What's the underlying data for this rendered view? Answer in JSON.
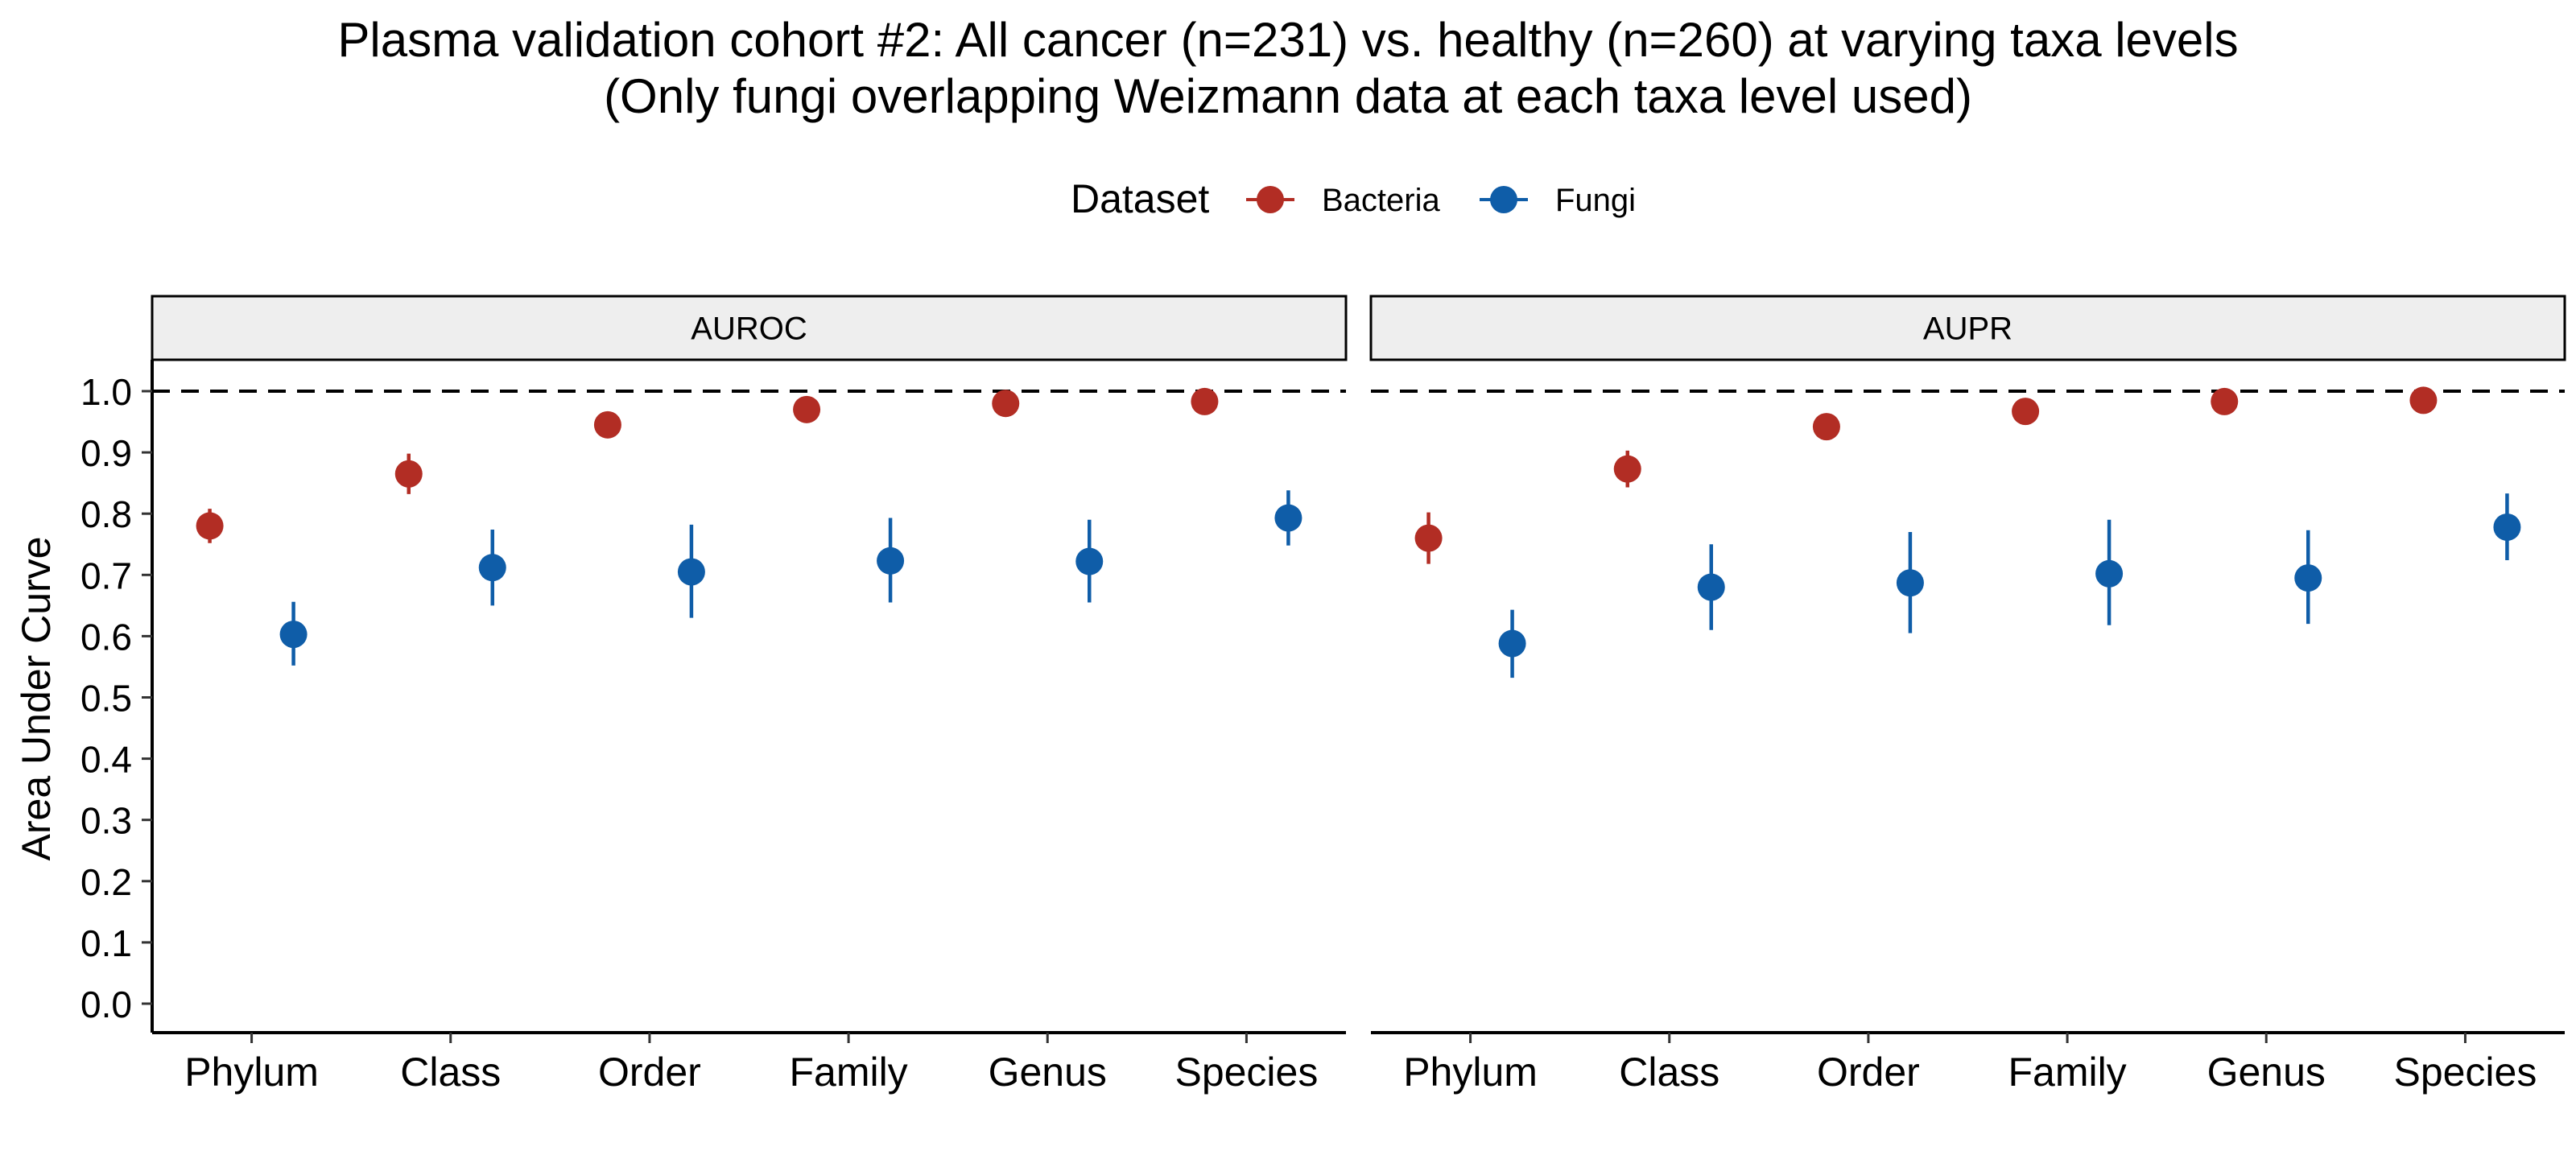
{
  "chart_data": {
    "type": "scatter",
    "title": "Plasma validation cohort #2: All cancer (n=231) vs. healthy (n=260) at varying taxa levels",
    "subtitle": "(Only fungi overlapping Weizmann data at each taxa level used)",
    "ylabel": "Area Under Curve",
    "xlabel": "",
    "legend": {
      "title": "Dataset",
      "position": "top",
      "items": [
        {
          "name": "Bacteria",
          "color": "#B22D24"
        },
        {
          "name": "Fungi",
          "color": "#0F5DA8"
        }
      ]
    },
    "ylim": [
      0,
      1
    ],
    "yticks": [
      "0.0",
      "0.1",
      "0.2",
      "0.3",
      "0.4",
      "0.5",
      "0.6",
      "0.7",
      "0.8",
      "0.9",
      "1.0"
    ],
    "reference_line": 1.0,
    "grid": false,
    "categories": [
      "Phylum",
      "Class",
      "Order",
      "Family",
      "Genus",
      "Species"
    ],
    "panels": [
      {
        "label": "AUROC",
        "series": [
          {
            "name": "Bacteria",
            "values": [
              0.78,
              0.865,
              0.945,
              0.97,
              0.98,
              0.983
            ],
            "lower": [
              0.752,
              0.832,
              0.932,
              0.958,
              0.97,
              0.973
            ],
            "upper": [
              0.808,
              0.898,
              0.958,
              0.982,
              0.99,
              0.993
            ]
          },
          {
            "name": "Fungi",
            "values": [
              0.603,
              0.712,
              0.705,
              0.723,
              0.722,
              0.793
            ],
            "lower": [
              0.552,
              0.65,
              0.63,
              0.655,
              0.655,
              0.748
            ],
            "upper": [
              0.656,
              0.774,
              0.782,
              0.793,
              0.79,
              0.838
            ]
          }
        ]
      },
      {
        "label": "AUPR",
        "series": [
          {
            "name": "Bacteria",
            "values": [
              0.76,
              0.873,
              0.942,
              0.967,
              0.983,
              0.985
            ],
            "lower": [
              0.718,
              0.843,
              0.928,
              0.955,
              0.973,
              0.975
            ],
            "upper": [
              0.802,
              0.903,
              0.956,
              0.979,
              0.993,
              0.995
            ]
          },
          {
            "name": "Fungi",
            "values": [
              0.588,
              0.68,
              0.687,
              0.702,
              0.695,
              0.778
            ],
            "lower": [
              0.532,
              0.61,
              0.605,
              0.618,
              0.62,
              0.724
            ],
            "upper": [
              0.643,
              0.75,
              0.77,
              0.79,
              0.773,
              0.833
            ]
          }
        ]
      }
    ]
  }
}
